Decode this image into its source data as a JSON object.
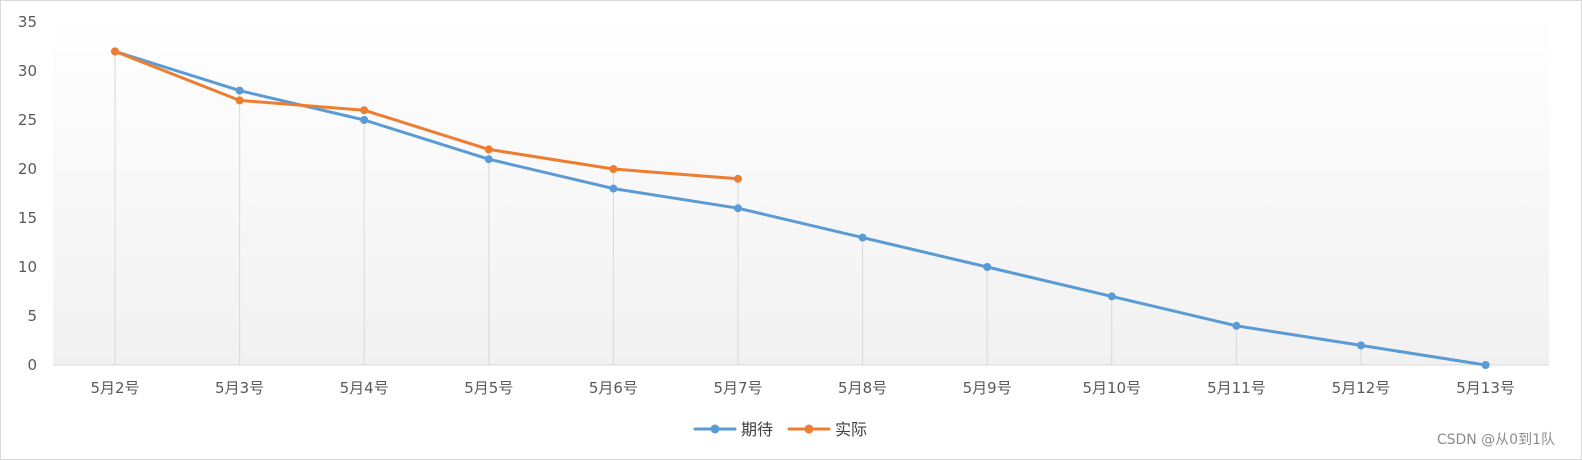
{
  "chart_data": {
    "type": "line",
    "title": "",
    "xlabel": "",
    "ylabel": "",
    "categories": [
      "5月2号",
      "5月3号",
      "5月4号",
      "5月5号",
      "5月6号",
      "5月7号",
      "5月8号",
      "5月9号",
      "5月10号",
      "5月11号",
      "5月12号",
      "5月13号"
    ],
    "ylim": [
      0,
      35
    ],
    "yticks": [
      0,
      5,
      10,
      15,
      20,
      25,
      30,
      35
    ],
    "grid": "vertical drop lines",
    "legend_position": "bottom",
    "series": [
      {
        "name": "期待",
        "color": "#5b9bd5",
        "values": [
          32,
          28,
          25,
          21,
          18,
          16,
          13,
          10,
          7,
          4,
          2,
          0
        ]
      },
      {
        "name": "实际",
        "color": "#ed7d31",
        "values": [
          32,
          27,
          26,
          22,
          20,
          19,
          null,
          null,
          null,
          null,
          null,
          null
        ]
      }
    ]
  },
  "watermark": "CSDN @从0到1队"
}
